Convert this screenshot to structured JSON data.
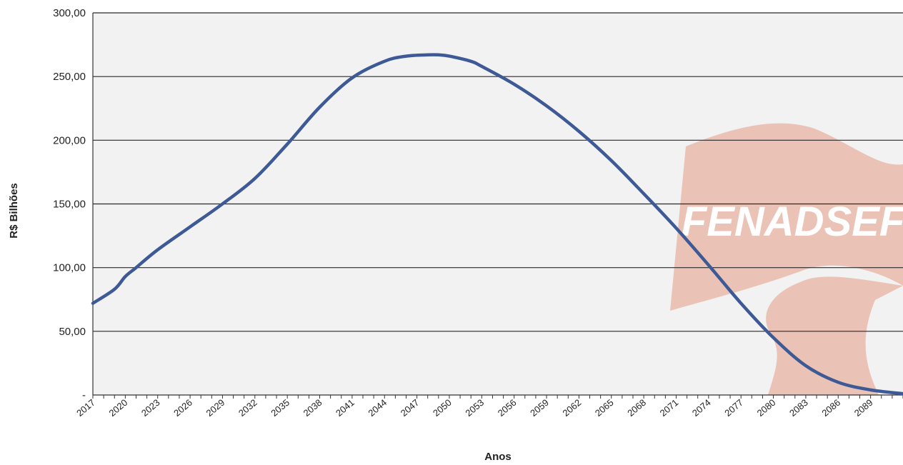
{
  "colors": {
    "plot_background": "#f2f2f2",
    "gridline": "#2a2a2a",
    "axis": "#333333",
    "series_line": "#3d5a96",
    "watermark_flag": "#e8b7a6",
    "watermark_text": "#ffffff"
  },
  "watermark": {
    "text": "FENADSEF",
    "shape": "flag-logo"
  },
  "chart_data": {
    "type": "line",
    "title": "",
    "xlabel": "Anos",
    "ylabel": "R$ Bilhões",
    "ylim": [
      0,
      300
    ],
    "xlim": [
      2017,
      2092
    ],
    "grid": true,
    "legend": "none",
    "y_ticks": [
      0,
      50,
      100,
      150,
      200,
      250,
      300
    ],
    "y_tick_labels": [
      "-",
      "50,00",
      "100,00",
      "150,00",
      "200,00",
      "250,00",
      "300,00"
    ],
    "x_tick_labels": [
      "2017",
      "2020",
      "2023",
      "2026",
      "2029",
      "2032",
      "2035",
      "2038",
      "2041",
      "2044",
      "2047",
      "2050",
      "2053",
      "2056",
      "2059",
      "2062",
      "2065",
      "2068",
      "2071",
      "2074",
      "2077",
      "2080",
      "2083",
      "2086",
      "2089"
    ],
    "series": [
      {
        "x": [
          2017,
          2019,
          2020,
          2021,
          2023,
          2026,
          2029,
          2032,
          2035,
          2038,
          2041,
          2044,
          2046,
          2048,
          2049,
          2050,
          2052,
          2053,
          2056,
          2059,
          2062,
          2065,
          2068,
          2071,
          2074,
          2077,
          2080,
          2083,
          2086,
          2089,
          2092
        ],
        "values": [
          72,
          83,
          93,
          100,
          114,
          132,
          150,
          170,
          197,
          226,
          249,
          262,
          266,
          267,
          267,
          266,
          262,
          258,
          244,
          227,
          207,
          184,
          158,
          131,
          102,
          72,
          45,
          23,
          10,
          4,
          1
        ]
      }
    ]
  }
}
